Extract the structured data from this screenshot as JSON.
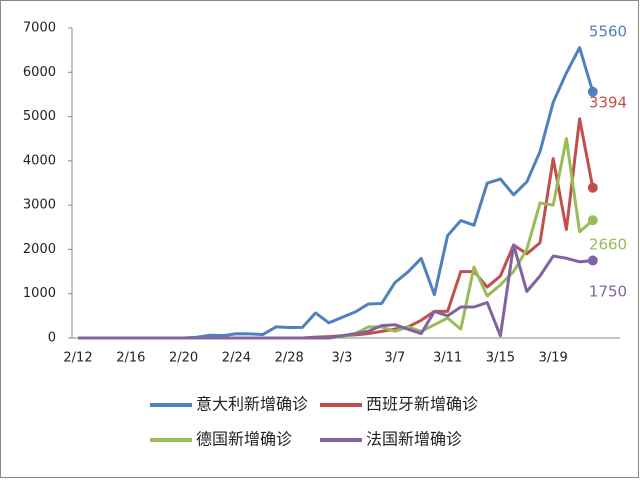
{
  "chart_data": {
    "type": "line",
    "categories": [
      "2/12",
      null,
      null,
      null,
      "2/16",
      null,
      null,
      null,
      "2/20",
      null,
      null,
      null,
      "2/24",
      null,
      null,
      null,
      "2/28",
      null,
      null,
      null,
      "3/3",
      null,
      null,
      null,
      "3/7",
      null,
      null,
      null,
      "3/11",
      null,
      null,
      null,
      "3/15",
      null,
      null,
      null,
      "3/19",
      null,
      null,
      null
    ],
    "ylim": [
      0,
      7000
    ],
    "yticks": [
      0,
      1000,
      2000,
      3000,
      4000,
      5000,
      6000,
      7000
    ],
    "grid": false,
    "series": [
      {
        "name": "意大利新增确诊",
        "color": "#4f81bd",
        "values": [
          0,
          0,
          0,
          0,
          0,
          0,
          0,
          0,
          0,
          17,
          62,
          53,
          97,
          93,
          78,
          250,
          238,
          240,
          566,
          342,
          466,
          587,
          769,
          778,
          1247,
          1492,
          1797,
          977,
          2313,
          2651,
          2547,
          3497,
          3590,
          3233,
          3526,
          4207,
          5322,
          5986,
          6557,
          5560
        ]
      },
      {
        "name": "西班牙新增确诊",
        "color": "#c0504d",
        "values": [
          0,
          0,
          0,
          0,
          0,
          0,
          0,
          0,
          0,
          0,
          0,
          0,
          0,
          0,
          0,
          0,
          0,
          0,
          20,
          30,
          50,
          70,
          100,
          150,
          200,
          250,
          400,
          600,
          600,
          1500,
          1500,
          1150,
          1400,
          2100,
          1900,
          2150,
          4050,
          2450,
          4950,
          3394
        ]
      },
      {
        "name": "德国新增确诊",
        "color": "#9bbb59",
        "values": [
          0,
          0,
          0,
          0,
          0,
          0,
          0,
          0,
          0,
          0,
          0,
          0,
          0,
          0,
          0,
          0,
          0,
          0,
          0,
          0,
          40,
          100,
          250,
          250,
          150,
          250,
          150,
          300,
          450,
          200,
          1600,
          950,
          1200,
          1500,
          2000,
          3050,
          3000,
          4500,
          2400,
          2660
        ]
      },
      {
        "name": "法国新增确诊",
        "color": "#8064a2",
        "values": [
          0,
          0,
          0,
          0,
          0,
          0,
          0,
          0,
          0,
          0,
          0,
          0,
          0,
          0,
          0,
          0,
          0,
          0,
          0,
          0,
          50,
          100,
          150,
          280,
          300,
          200,
          100,
          600,
          500,
          700,
          700,
          800,
          50,
          2100,
          1050,
          1400,
          1850,
          1800,
          1720,
          1750
        ]
      }
    ]
  }
}
